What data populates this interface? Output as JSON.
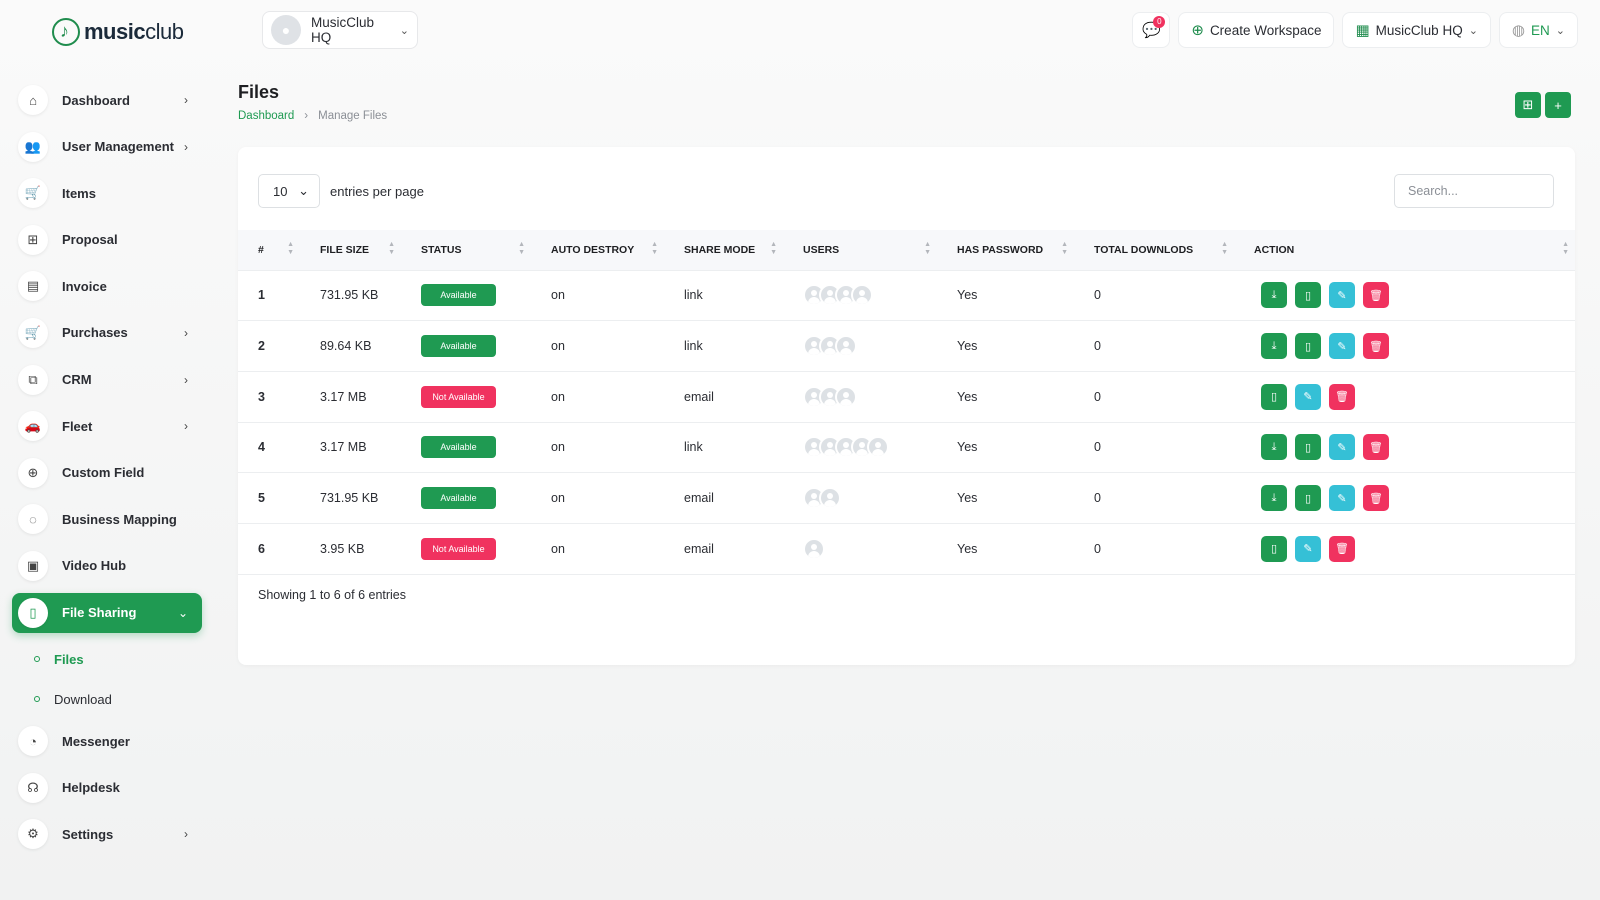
{
  "brand": {
    "name_bold": "music",
    "name_light": "club"
  },
  "workspace_switch": {
    "name": "MusicClub HQ"
  },
  "topbar": {
    "notification_count": "0",
    "create_workspace": "Create Workspace",
    "workspace": "MusicClub HQ",
    "language": "EN"
  },
  "sidebar": {
    "items": [
      {
        "label": "Dashboard",
        "icon": "home-icon",
        "chevron": true
      },
      {
        "label": "User Management",
        "icon": "users-icon",
        "chevron": true
      },
      {
        "label": "Items",
        "icon": "cart-icon",
        "chevron": false
      },
      {
        "label": "Proposal",
        "icon": "proposal-icon",
        "chevron": false
      },
      {
        "label": "Invoice",
        "icon": "invoice-icon",
        "chevron": false
      },
      {
        "label": "Purchases",
        "icon": "cart-icon",
        "chevron": true
      },
      {
        "label": "CRM",
        "icon": "crm-icon",
        "chevron": true
      },
      {
        "label": "Fleet",
        "icon": "car-icon",
        "chevron": true
      },
      {
        "label": "Custom Field",
        "icon": "plus-circle-icon",
        "chevron": false
      },
      {
        "label": "Business Mapping",
        "icon": "circle-dashed-icon",
        "chevron": false
      },
      {
        "label": "Video Hub",
        "icon": "video-icon",
        "chevron": false
      },
      {
        "label": "File Sharing",
        "icon": "file-icon",
        "chevron": true,
        "active": true
      },
      {
        "label": "Messenger",
        "icon": "chat-icon",
        "chevron": false
      },
      {
        "label": "Helpdesk",
        "icon": "headset-icon",
        "chevron": false
      },
      {
        "label": "Settings",
        "icon": "gear-icon",
        "chevron": true
      }
    ],
    "submenu": [
      {
        "label": "Files",
        "active": true
      },
      {
        "label": "Download",
        "active": false
      }
    ]
  },
  "page": {
    "title": "Files",
    "breadcrumb_home": "Dashboard",
    "breadcrumb_current": "Manage Files"
  },
  "table_controls": {
    "entries_value": "10",
    "entries_label": "entries per page",
    "search_placeholder": "Search..."
  },
  "table": {
    "columns": [
      "#",
      "FILE SIZE",
      "STATUS",
      "AUTO DESTROY",
      "SHARE MODE",
      "USERS",
      "HAS PASSWORD",
      "TOTAL DOWNLODS",
      "ACTION"
    ],
    "rows": [
      {
        "num": "1",
        "size": "731.95 KB",
        "status": "Available",
        "auto_destroy": "on",
        "share_mode": "link",
        "users": 4,
        "has_password": "Yes",
        "downloads": "0",
        "can_download": true
      },
      {
        "num": "2",
        "size": "89.64 KB",
        "status": "Available",
        "auto_destroy": "on",
        "share_mode": "link",
        "users": 3,
        "has_password": "Yes",
        "downloads": "0",
        "can_download": true
      },
      {
        "num": "3",
        "size": "3.17 MB",
        "status": "Not Available",
        "auto_destroy": "on",
        "share_mode": "email",
        "users": 3,
        "has_password": "Yes",
        "downloads": "0",
        "can_download": false
      },
      {
        "num": "4",
        "size": "3.17 MB",
        "status": "Available",
        "auto_destroy": "on",
        "share_mode": "link",
        "users": 5,
        "has_password": "Yes",
        "downloads": "0",
        "can_download": true
      },
      {
        "num": "5",
        "size": "731.95 KB",
        "status": "Available",
        "auto_destroy": "on",
        "share_mode": "email",
        "users": 2,
        "has_password": "Yes",
        "downloads": "0",
        "can_download": true
      },
      {
        "num": "6",
        "size": "3.95 KB",
        "status": "Not Available",
        "auto_destroy": "on",
        "share_mode": "email",
        "users": 1,
        "has_password": "Yes",
        "downloads": "0",
        "can_download": false
      }
    ]
  },
  "footer_info": "Showing 1 to 6 of 6 entries",
  "colors": {
    "primary": "#1f9a52",
    "danger": "#f0325f",
    "info": "#35c0d6"
  }
}
